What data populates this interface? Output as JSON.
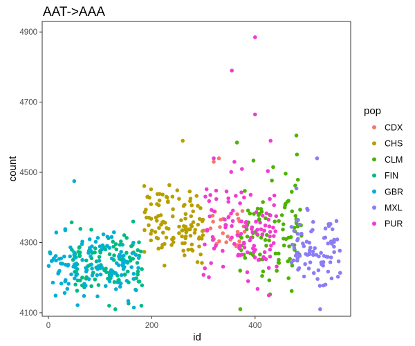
{
  "chart_data": {
    "type": "scatter",
    "title": "AAT->AAA",
    "xlabel": "id",
    "ylabel": "count",
    "xlim": [
      -12,
      585
    ],
    "ylim": [
      4090,
      4930
    ],
    "xticks": [
      0,
      200,
      400
    ],
    "yticks": [
      4100,
      4300,
      4500,
      4700,
      4900
    ],
    "grid": false,
    "legend": {
      "title": "pop",
      "position": "right"
    },
    "series": [
      {
        "name": "CDX",
        "color": "#F8766D",
        "x_range": [
          300,
          380
        ],
        "y_mean": 4345,
        "y_sd": 35,
        "count": 26,
        "extra_points": [
          [
            320,
            4530
          ],
          [
            330,
            4540
          ]
        ]
      },
      {
        "name": "CHS",
        "color": "#B79F00",
        "x_range": [
          185,
          300
        ],
        "y_mean": 4355,
        "y_sd": 50,
        "count": 115,
        "extra_points": [
          [
            260,
            4590
          ]
        ]
      },
      {
        "name": "CLM",
        "color": "#4DB300",
        "x_range": [
          370,
          490
        ],
        "y_mean": 4335,
        "y_sd": 75,
        "count": 95,
        "extra_points": [
          [
            480,
            4605
          ],
          [
            435,
            4515
          ],
          [
            365,
            4585
          ]
        ]
      },
      {
        "name": "FIN",
        "color": "#00BA83",
        "x_range": [
          45,
          185
        ],
        "y_mean": 4235,
        "y_sd": 45,
        "count": 115,
        "extra_points": [
          [
            180,
            4120
          ]
        ]
      },
      {
        "name": "GBR",
        "color": "#00AFD6",
        "x_range": [
          0,
          175
        ],
        "y_mean": 4230,
        "y_sd": 45,
        "count": 120,
        "extra_points": [
          [
            50,
            4475
          ]
        ]
      },
      {
        "name": "MXL",
        "color": "#8B7CF6",
        "x_range": [
          470,
          565
        ],
        "y_mean": 4270,
        "y_sd": 60,
        "count": 85,
        "extra_points": [
          [
            520,
            4540
          ]
        ]
      },
      {
        "name": "PUR",
        "color": "#F23BD3",
        "x_range": [
          300,
          445
        ],
        "y_mean": 4335,
        "y_sd": 70,
        "count": 110,
        "extra_points": [
          [
            400,
            4885
          ],
          [
            355,
            4790
          ],
          [
            400,
            4665
          ],
          [
            430,
            4590
          ],
          [
            320,
            4540
          ],
          [
            360,
            4530
          ]
        ]
      }
    ]
  }
}
